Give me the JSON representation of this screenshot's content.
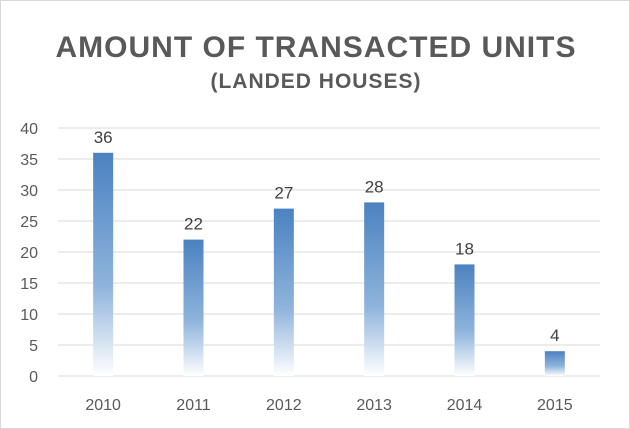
{
  "chart_data": {
    "type": "bar",
    "title": "AMOUNT OF TRANSACTED UNITS",
    "subtitle": "(LANDED HOUSES)",
    "xlabel": "",
    "ylabel": "",
    "categories": [
      "2010",
      "2011",
      "2012",
      "2013",
      "2014",
      "2015"
    ],
    "values": [
      36,
      22,
      27,
      28,
      18,
      4
    ],
    "data_labels": [
      "36",
      "22",
      "27",
      "28",
      "18",
      "4"
    ],
    "ylim": [
      0,
      40
    ],
    "yticks": [
      "0",
      "5",
      "10",
      "15",
      "20",
      "25",
      "30",
      "35",
      "40"
    ],
    "grid": true,
    "legend": "none",
    "bar_color": "#4a82c0",
    "bar_color_fade": "#ffffff",
    "grid_color": "#d9d9d9",
    "text_color": "#595959"
  }
}
